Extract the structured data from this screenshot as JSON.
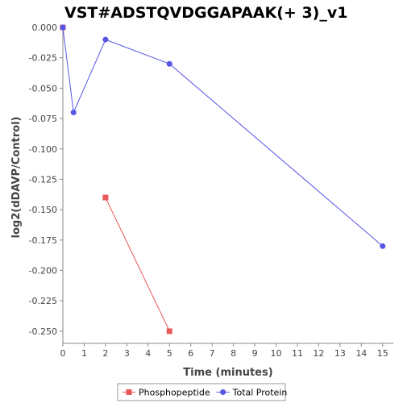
{
  "chart_data": {
    "type": "line",
    "title": "VST#ADSTQVDGGAPAAK(+ 3)_v1",
    "xlabel": "Time (minutes)",
    "ylabel": "log2(dDAVP/Control)",
    "xlim": [
      0,
      15.5
    ],
    "ylim": [
      -0.26,
      0.0
    ],
    "x_ticks": [
      0,
      1,
      2,
      3,
      4,
      5,
      6,
      7,
      8,
      9,
      10,
      11,
      12,
      13,
      14,
      15
    ],
    "y_ticks": [
      0.0,
      -0.025,
      -0.05,
      -0.075,
      -0.1,
      -0.125,
      -0.15,
      -0.175,
      -0.2,
      -0.225,
      -0.25
    ],
    "y_tick_labels": [
      "0.000",
      "-0.025",
      "-0.050",
      "-0.075",
      "-0.100",
      "-0.125",
      "-0.150",
      "-0.175",
      "-0.200",
      "-0.225",
      "-0.250"
    ],
    "grid": false,
    "legend_position": "bottom",
    "series": [
      {
        "name": "Phosphopeptide",
        "color": "#e8595a",
        "marker": "square",
        "x": [
          0,
          2,
          5
        ],
        "y": [
          0.0,
          -0.14,
          -0.25
        ],
        "segments": [
          [
            0
          ],
          [
            1,
            2
          ]
        ]
      },
      {
        "name": "Total Protein",
        "color": "#5555e6",
        "marker": "circle",
        "x": [
          0,
          0.5,
          2,
          5,
          15
        ],
        "y": [
          0.0,
          -0.07,
          -0.01,
          -0.03,
          -0.18
        ],
        "segments": [
          [
            0,
            1,
            2,
            3,
            4
          ]
        ]
      }
    ]
  }
}
